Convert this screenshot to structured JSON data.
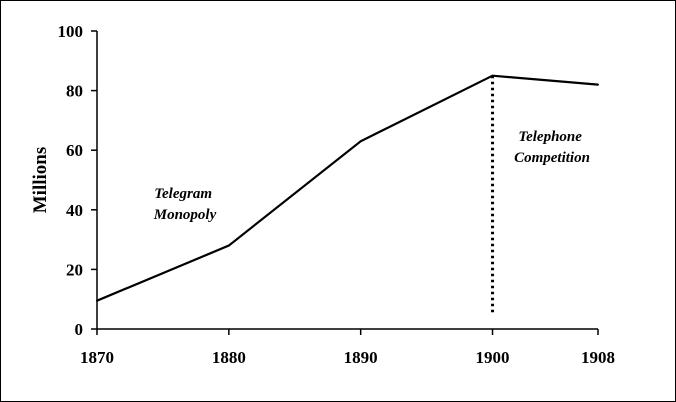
{
  "chart_data": {
    "type": "line",
    "title": "",
    "xlabel": "",
    "ylabel": "Millions",
    "xlim": [
      1870,
      1908
    ],
    "ylim": [
      0,
      100
    ],
    "grid": false,
    "categories": [
      "1870",
      "1880",
      "1890",
      "1900",
      "1908"
    ],
    "x_tick_labels": [
      "1870",
      "1880",
      "1890",
      "1900",
      "1908"
    ],
    "y_tick_labels": [
      "0",
      "20",
      "40",
      "60",
      "80",
      "100"
    ],
    "y_ticks": [
      0,
      20,
      40,
      60,
      80,
      100
    ],
    "series": [
      {
        "values": [
          9.5,
          28,
          63,
          85,
          82
        ]
      }
    ],
    "annotations": [
      {
        "text_lines": [
          "Telegram",
          "Monopoly"
        ]
      },
      {
        "text_lines": [
          "Telephone",
          "Competition"
        ]
      }
    ],
    "reference_line": {
      "x": "1900",
      "style": "dotted",
      "from_y": 5,
      "to_y": 85
    },
    "colors": {
      "line": "#000000",
      "axis": "#000000",
      "background": "#ffffff"
    }
  }
}
